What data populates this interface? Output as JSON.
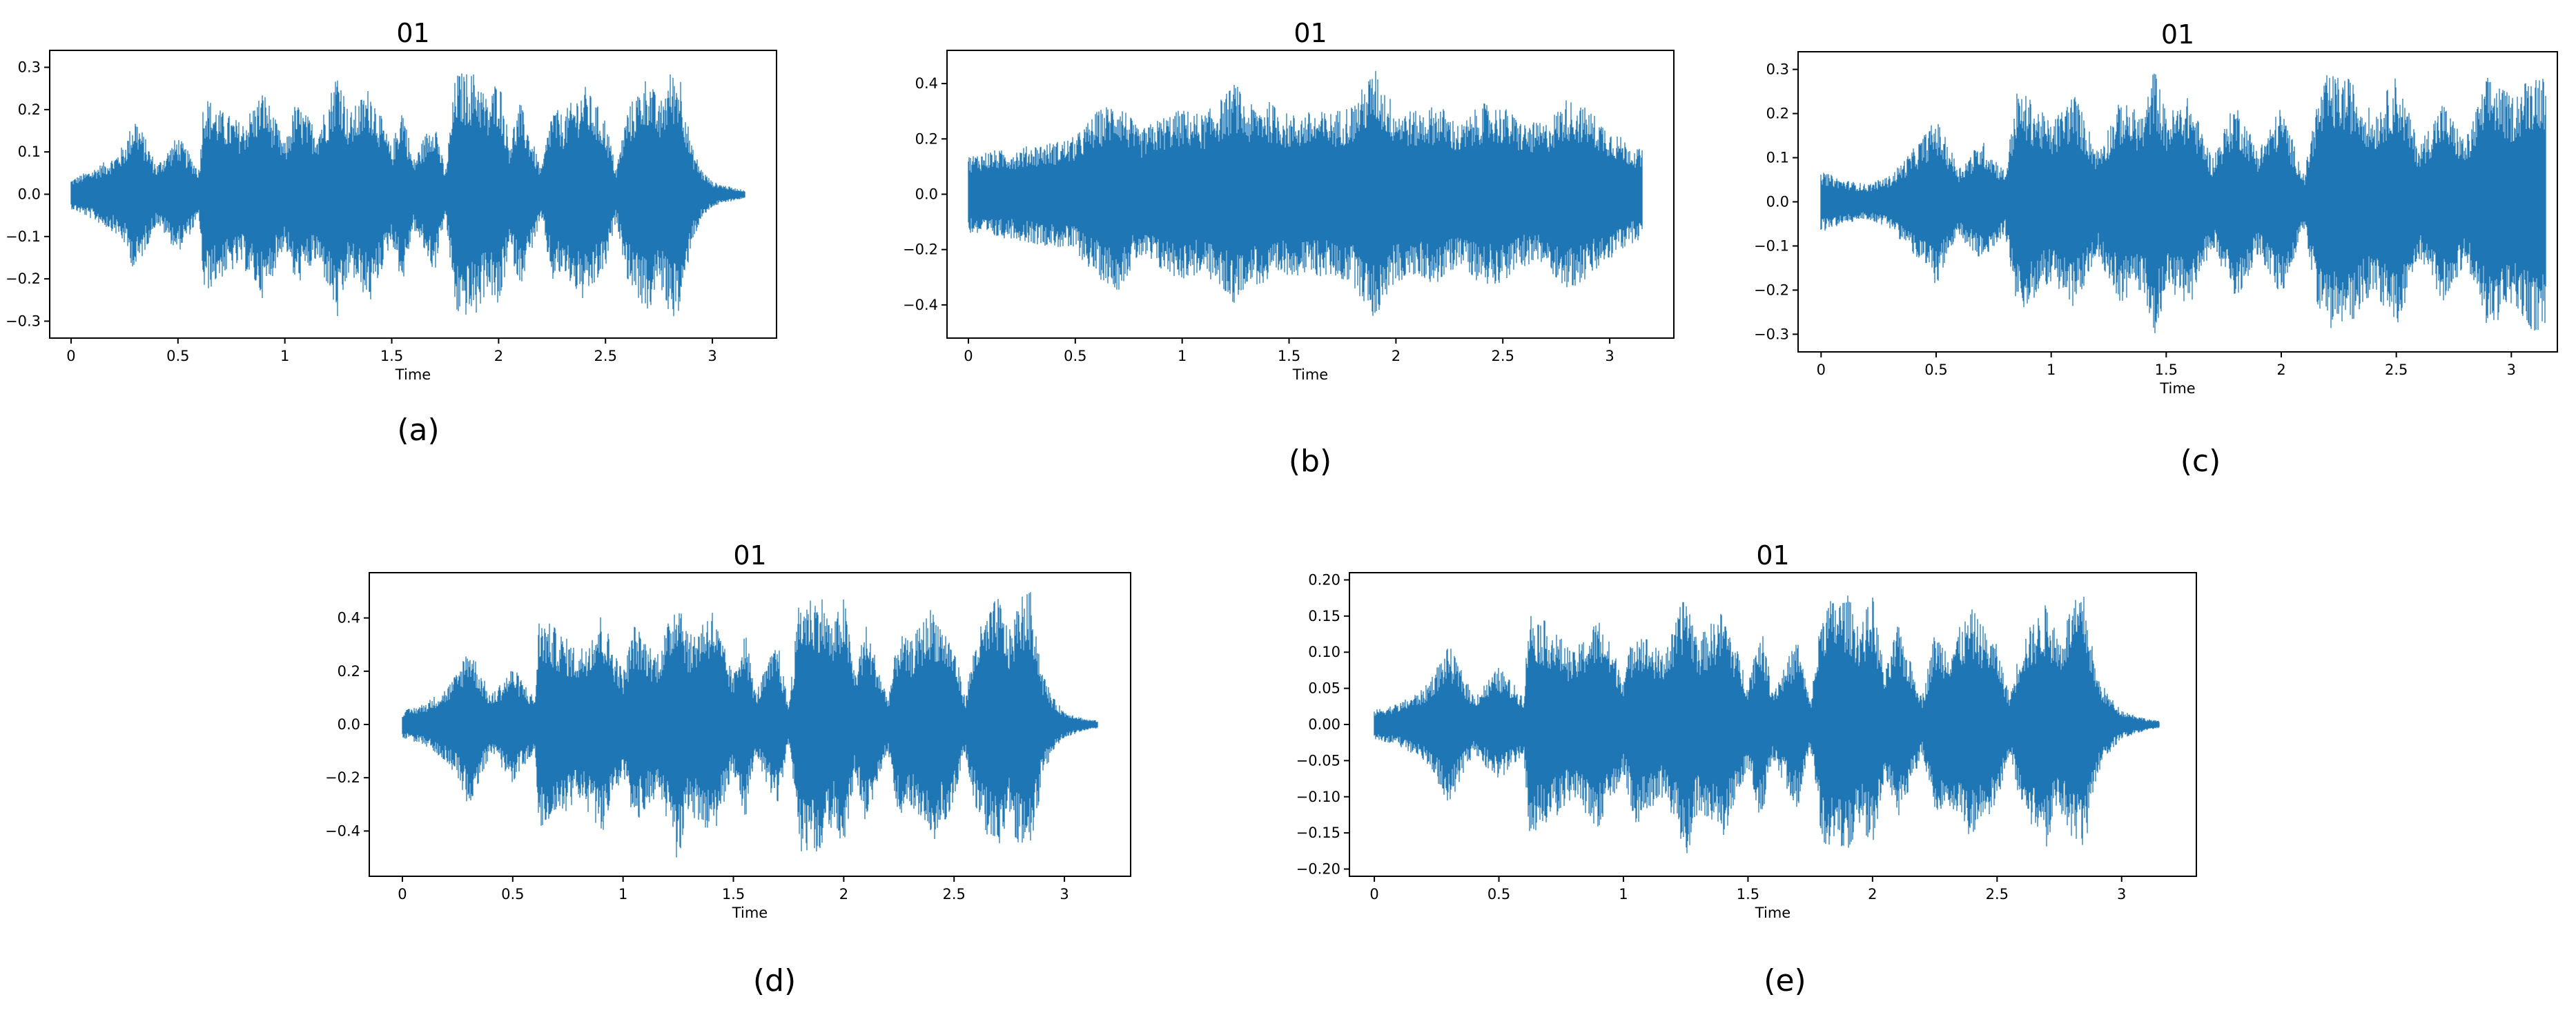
{
  "figure": {
    "series_color": "#1f77b4",
    "panels": [
      {
        "id": "a",
        "label": "(a)",
        "chart_ref": 0
      },
      {
        "id": "b",
        "label": "(b)",
        "chart_ref": 1
      },
      {
        "id": "c",
        "label": "(c)",
        "chart_ref": 2
      },
      {
        "id": "d",
        "label": "(d)",
        "chart_ref": 3
      },
      {
        "id": "e",
        "label": "(e)",
        "chart_ref": 4
      }
    ]
  },
  "chart_data": [
    {
      "type": "area",
      "title": "01",
      "xlabel": "Time",
      "ylabel": "",
      "xlim": [
        -0.1,
        3.3
      ],
      "ylim": [
        -0.34,
        0.34
      ],
      "xticks": [
        0,
        0.5,
        1,
        1.5,
        2,
        2.5,
        3
      ],
      "xtick_labels": [
        "0",
        "0.5",
        "1",
        "1.5",
        "2",
        "2.5",
        "3"
      ],
      "yticks": [
        -0.3,
        -0.2,
        -0.1,
        0.0,
        0.1,
        0.2,
        0.3
      ],
      "ytick_labels": [
        "−0.3",
        "−0.2",
        "−0.1",
        "0.0",
        "0.1",
        "0.2",
        "0.3"
      ],
      "grid": false,
      "series": [
        {
          "values_description_free": true,
          "x": [
            0.0,
            0.1,
            0.2,
            0.25,
            0.3,
            0.4,
            0.5,
            0.6,
            0.62,
            0.7,
            0.8,
            0.9,
            1.0,
            1.05,
            1.15,
            1.2,
            1.25,
            1.3,
            1.4,
            1.5,
            1.55,
            1.6,
            1.7,
            1.75,
            1.8,
            1.9,
            1.95,
            2.0,
            2.05,
            2.1,
            2.2,
            2.25,
            2.3,
            2.4,
            2.5,
            2.55,
            2.6,
            2.7,
            2.75,
            2.8,
            2.85,
            2.9,
            2.95,
            3.0,
            3.1,
            3.15
          ],
          "envelope": [
            0.035,
            0.06,
            0.09,
            0.12,
            0.19,
            0.07,
            0.14,
            0.06,
            0.24,
            0.2,
            0.17,
            0.25,
            0.12,
            0.22,
            0.16,
            0.22,
            0.31,
            0.19,
            0.26,
            0.11,
            0.22,
            0.08,
            0.19,
            0.05,
            0.29,
            0.29,
            0.22,
            0.29,
            0.13,
            0.22,
            0.06,
            0.21,
            0.19,
            0.26,
            0.18,
            0.06,
            0.2,
            0.29,
            0.21,
            0.29,
            0.29,
            0.12,
            0.06,
            0.03,
            0.015,
            0.01
          ]
        }
      ]
    },
    {
      "type": "area",
      "title": "01",
      "xlabel": "Time",
      "ylabel": "",
      "xlim": [
        -0.1,
        3.3
      ],
      "ylim": [
        -0.52,
        0.52
      ],
      "xticks": [
        0,
        0.5,
        1,
        1.5,
        2,
        2.5,
        3
      ],
      "xtick_labels": [
        "0",
        "0.5",
        "1",
        "1.5",
        "2",
        "2.5",
        "3"
      ],
      "yticks": [
        -0.4,
        -0.2,
        0.0,
        0.2,
        0.4
      ],
      "ytick_labels": [
        "−0.4",
        "−0.2",
        "0.0",
        "0.2",
        "0.4"
      ],
      "grid": false,
      "series": [
        {
          "x": [
            0.0,
            0.1,
            0.2,
            0.3,
            0.4,
            0.5,
            0.6,
            0.7,
            0.8,
            0.9,
            1.0,
            1.1,
            1.2,
            1.25,
            1.3,
            1.4,
            1.5,
            1.6,
            1.7,
            1.8,
            1.9,
            1.95,
            2.0,
            2.1,
            2.2,
            2.3,
            2.4,
            2.5,
            2.6,
            2.7,
            2.8,
            2.9,
            3.0,
            3.1,
            3.15
          ],
          "envelope": [
            0.14,
            0.16,
            0.16,
            0.18,
            0.19,
            0.21,
            0.3,
            0.35,
            0.23,
            0.28,
            0.31,
            0.29,
            0.36,
            0.41,
            0.32,
            0.34,
            0.29,
            0.3,
            0.3,
            0.33,
            0.46,
            0.38,
            0.32,
            0.3,
            0.33,
            0.25,
            0.33,
            0.32,
            0.26,
            0.26,
            0.35,
            0.31,
            0.24,
            0.18,
            0.16
          ]
        }
      ]
    },
    {
      "type": "area",
      "title": "01",
      "xlabel": "Time",
      "ylabel": "",
      "xlim": [
        -0.1,
        3.2
      ],
      "ylim": [
        -0.34,
        0.34
      ],
      "xticks": [
        0,
        0.5,
        1,
        1.5,
        2,
        2.5,
        3
      ],
      "xtick_labels": [
        "0",
        "0.5",
        "1",
        "1.5",
        "2",
        "2.5",
        "3"
      ],
      "yticks": [
        -0.3,
        -0.2,
        -0.1,
        0.0,
        0.1,
        0.2,
        0.3
      ],
      "ytick_labels": [
        "−0.3",
        "−0.2",
        "−0.1",
        "0.0",
        "0.1",
        "0.2",
        "0.3"
      ],
      "grid": false,
      "series": [
        {
          "x": [
            0.0,
            0.1,
            0.2,
            0.3,
            0.4,
            0.5,
            0.6,
            0.7,
            0.8,
            0.85,
            0.9,
            1.0,
            1.1,
            1.2,
            1.3,
            1.4,
            1.45,
            1.5,
            1.6,
            1.7,
            1.8,
            1.9,
            2.0,
            2.1,
            2.15,
            2.2,
            2.3,
            2.4,
            2.5,
            2.6,
            2.7,
            2.8,
            2.9,
            3.0,
            3.1,
            3.15
          ],
          "envelope": [
            0.07,
            0.05,
            0.04,
            0.06,
            0.12,
            0.19,
            0.08,
            0.14,
            0.07,
            0.25,
            0.24,
            0.18,
            0.25,
            0.12,
            0.23,
            0.2,
            0.31,
            0.2,
            0.24,
            0.1,
            0.23,
            0.12,
            0.22,
            0.06,
            0.22,
            0.29,
            0.28,
            0.2,
            0.29,
            0.13,
            0.23,
            0.14,
            0.29,
            0.24,
            0.3,
            0.29
          ]
        }
      ]
    },
    {
      "type": "area",
      "title": "01",
      "xlabel": "Time",
      "ylabel": "",
      "xlim": [
        -0.15,
        3.3
      ],
      "ylim": [
        -0.57,
        0.57
      ],
      "xticks": [
        0,
        0.5,
        1,
        1.5,
        2,
        2.5,
        3
      ],
      "xtick_labels": [
        "0",
        "0.5",
        "1",
        "1.5",
        "2",
        "2.5",
        "3"
      ],
      "yticks": [
        -0.4,
        -0.2,
        0.0,
        0.2,
        0.4
      ],
      "ytick_labels": [
        "−0.4",
        "−0.2",
        "0.0",
        "0.2",
        "0.4"
      ],
      "grid": false,
      "series": [
        {
          "x": [
            0.0,
            0.1,
            0.2,
            0.25,
            0.3,
            0.4,
            0.5,
            0.6,
            0.62,
            0.7,
            0.8,
            0.9,
            1.0,
            1.05,
            1.15,
            1.2,
            1.25,
            1.3,
            1.4,
            1.5,
            1.55,
            1.6,
            1.7,
            1.75,
            1.8,
            1.9,
            1.95,
            2.0,
            2.05,
            2.1,
            2.2,
            2.25,
            2.3,
            2.4,
            2.5,
            2.55,
            2.6,
            2.7,
            2.75,
            2.8,
            2.85,
            2.9,
            2.95,
            3.0,
            3.1,
            3.15
          ],
          "envelope": [
            0.05,
            0.08,
            0.14,
            0.2,
            0.31,
            0.11,
            0.22,
            0.1,
            0.41,
            0.36,
            0.28,
            0.42,
            0.2,
            0.38,
            0.27,
            0.37,
            0.53,
            0.33,
            0.45,
            0.18,
            0.38,
            0.12,
            0.32,
            0.07,
            0.48,
            0.49,
            0.37,
            0.49,
            0.2,
            0.38,
            0.1,
            0.35,
            0.31,
            0.45,
            0.3,
            0.1,
            0.34,
            0.49,
            0.35,
            0.49,
            0.5,
            0.2,
            0.1,
            0.05,
            0.02,
            0.015
          ]
        }
      ]
    },
    {
      "type": "area",
      "title": "01",
      "xlabel": "Time",
      "ylabel": "",
      "xlim": [
        -0.1,
        3.3
      ],
      "ylim": [
        -0.21,
        0.21
      ],
      "xticks": [
        0,
        0.5,
        1,
        1.5,
        2,
        2.5,
        3
      ],
      "xtick_labels": [
        "0",
        "0.5",
        "1",
        "1.5",
        "2",
        "2.5",
        "3"
      ],
      "yticks": [
        -0.2,
        -0.15,
        -0.1,
        -0.05,
        0.0,
        0.05,
        0.1,
        0.15,
        0.2
      ],
      "ytick_labels": [
        "−0.20",
        "−0.15",
        "−0.10",
        "−0.05",
        "0.00",
        "0.05",
        "0.10",
        "0.15",
        "0.20"
      ],
      "grid": false,
      "series": [
        {
          "x": [
            0.0,
            0.1,
            0.2,
            0.25,
            0.3,
            0.4,
            0.5,
            0.6,
            0.62,
            0.7,
            0.8,
            0.9,
            1.0,
            1.05,
            1.15,
            1.2,
            1.25,
            1.3,
            1.4,
            1.5,
            1.55,
            1.6,
            1.7,
            1.75,
            1.8,
            1.9,
            1.95,
            2.0,
            2.05,
            2.1,
            2.2,
            2.25,
            2.3,
            2.4,
            2.5,
            2.55,
            2.6,
            2.7,
            2.75,
            2.8,
            2.85,
            2.9,
            2.95,
            3.0,
            3.1,
            3.15
          ],
          "envelope": [
            0.02,
            0.03,
            0.05,
            0.08,
            0.11,
            0.04,
            0.08,
            0.04,
            0.16,
            0.14,
            0.1,
            0.15,
            0.07,
            0.14,
            0.1,
            0.13,
            0.19,
            0.12,
            0.16,
            0.06,
            0.14,
            0.05,
            0.12,
            0.03,
            0.17,
            0.18,
            0.14,
            0.18,
            0.07,
            0.14,
            0.04,
            0.13,
            0.11,
            0.16,
            0.11,
            0.04,
            0.12,
            0.17,
            0.12,
            0.17,
            0.18,
            0.07,
            0.04,
            0.02,
            0.008,
            0.005
          ]
        }
      ]
    }
  ]
}
